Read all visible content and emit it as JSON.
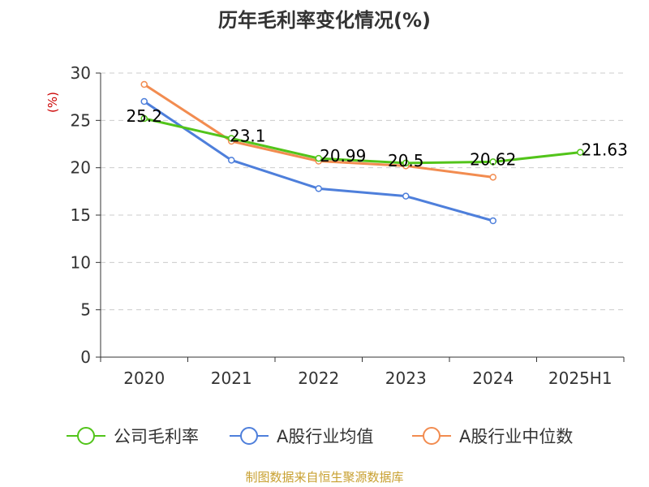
{
  "chart_data": {
    "type": "line",
    "title": "历年毛利率变化情况(%)",
    "ylabel": "(%)",
    "xlabel": "",
    "categories": [
      "2020",
      "2021",
      "2022",
      "2023",
      "2024",
      "2025H1"
    ],
    "ylim": [
      0,
      30
    ],
    "yticks": [
      0,
      5,
      10,
      15,
      20,
      25,
      30
    ],
    "grid": true,
    "legend_position": "bottom",
    "series": [
      {
        "name": "公司毛利率",
        "color": "#52c41a",
        "values": [
          25.2,
          23.1,
          20.99,
          20.5,
          20.62,
          21.63
        ],
        "labels": [
          "25.2",
          "23.1",
          "20.99",
          "20.5",
          "20.62",
          "21.63"
        ]
      },
      {
        "name": "A股行业均值",
        "color": "#4e7fdb",
        "values": [
          27.0,
          20.8,
          17.8,
          17.0,
          14.4,
          null
        ]
      },
      {
        "name": "A股行业中位数",
        "color": "#f28c50",
        "values": [
          28.8,
          22.8,
          20.7,
          20.2,
          19.0,
          null
        ]
      }
    ],
    "source": "制图数据来自恒生聚源数据库"
  }
}
